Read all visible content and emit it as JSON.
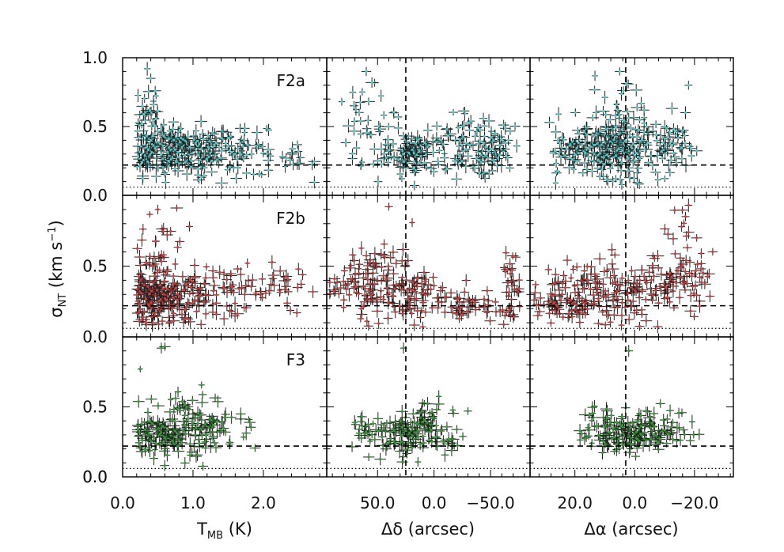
{
  "chart_data": {
    "type": "scatter",
    "y_axis": {
      "label": "σ",
      "label_sub": "NT",
      "label_unit": "(km s",
      "label_sup": "−1",
      "label_close": ")",
      "ylim": [
        0.0,
        1.0
      ],
      "ticks": [
        0.0,
        0.5,
        1.0
      ],
      "tick_labels_top": [
        "0.0",
        "0.5",
        "1.0"
      ],
      "tick_labels": [
        "0.0",
        "0.5"
      ],
      "hline_dashed": 0.22,
      "hline_dotted": 0.06
    },
    "columns": [
      {
        "label": "T",
        "label_sub": "MB",
        "label_rest": " (K)",
        "xlim": [
          0.0,
          2.9
        ],
        "ticks": [
          0.0,
          1.0,
          2.0
        ],
        "tick_labels": [
          "0.0",
          "1.0",
          "2.0"
        ],
        "vline_dashed": null
      },
      {
        "label": "Δδ (arcsec)",
        "xlim": [
          95,
          -85
        ],
        "ticks": [
          50,
          0,
          -50
        ],
        "tick_labels": [
          "50.0",
          "0.0",
          "−50.0"
        ],
        "vline_dashed": 25
      },
      {
        "label": "Δα (arcsec)",
        "xlim": [
          35,
          -33
        ],
        "ticks": [
          20,
          0,
          -20
        ],
        "tick_labels": [
          "20.0",
          "0.0",
          "−20.0"
        ],
        "vline_dashed": 3
      }
    ],
    "rows": [
      {
        "name": "F2a",
        "color": "#4ec9c9",
        "clusters": [
          [
            {
              "x": 0.75,
              "y": 0.33,
              "sx": 0.45,
              "sy": 0.09,
              "n": 260
            },
            {
              "x": 1.6,
              "y": 0.3,
              "sx": 0.5,
              "sy": 0.08,
              "n": 70
            },
            {
              "x": 0.35,
              "y": 0.6,
              "sx": 0.12,
              "sy": 0.15,
              "n": 30
            },
            {
              "x": 2.5,
              "y": 0.24,
              "sx": 0.2,
              "sy": 0.03,
              "n": 10
            }
          ],
          [
            {
              "x": 20,
              "y": 0.3,
              "sx": 14,
              "sy": 0.08,
              "n": 110
            },
            {
              "x": -25,
              "y": 0.37,
              "sx": 14,
              "sy": 0.13,
              "n": 70
            },
            {
              "x": -55,
              "y": 0.33,
              "sx": 10,
              "sy": 0.09,
              "n": 60
            },
            {
              "x": 55,
              "y": 0.5,
              "sx": 12,
              "sy": 0.18,
              "n": 40
            }
          ],
          [
            {
              "x": 8,
              "y": 0.34,
              "sx": 7,
              "sy": 0.1,
              "n": 220
            },
            {
              "x": -10,
              "y": 0.36,
              "sx": 6,
              "sy": 0.1,
              "n": 70
            },
            {
              "x": 22,
              "y": 0.3,
              "sx": 4,
              "sy": 0.1,
              "n": 40
            },
            {
              "x": 5,
              "y": 0.65,
              "sx": 5,
              "sy": 0.12,
              "n": 25
            }
          ]
        ]
      },
      {
        "name": "F2b",
        "color": "#d63a3a",
        "clusters": [
          [
            {
              "x": 0.55,
              "y": 0.27,
              "sx": 0.3,
              "sy": 0.09,
              "n": 220
            },
            {
              "x": 1.4,
              "y": 0.35,
              "sx": 0.55,
              "sy": 0.1,
              "n": 90
            },
            {
              "x": 0.5,
              "y": 0.65,
              "sx": 0.2,
              "sy": 0.15,
              "n": 30
            },
            {
              "x": 2.4,
              "y": 0.37,
              "sx": 0.3,
              "sy": 0.04,
              "n": 15
            }
          ],
          [
            {
              "x": 55,
              "y": 0.38,
              "sx": 18,
              "sy": 0.12,
              "n": 120
            },
            {
              "x": 15,
              "y": 0.3,
              "sx": 15,
              "sy": 0.1,
              "n": 80
            },
            {
              "x": -35,
              "y": 0.22,
              "sx": 18,
              "sy": 0.05,
              "n": 50
            },
            {
              "x": -68,
              "y": 0.3,
              "sx": 4,
              "sy": 0.15,
              "n": 35
            }
          ],
          [
            {
              "x": 12,
              "y": 0.32,
              "sx": 10,
              "sy": 0.12,
              "n": 160
            },
            {
              "x": -12,
              "y": 0.38,
              "sx": 7,
              "sy": 0.1,
              "n": 100
            },
            {
              "x": 25,
              "y": 0.22,
              "sx": 5,
              "sy": 0.05,
              "n": 40
            },
            {
              "x": -15,
              "y": 0.75,
              "sx": 4,
              "sy": 0.12,
              "n": 12
            }
          ]
        ]
      },
      {
        "name": "F3",
        "color": "#2f9e2f",
        "clusters": [
          [
            {
              "x": 0.7,
              "y": 0.3,
              "sx": 0.3,
              "sy": 0.08,
              "n": 160
            },
            {
              "x": 1.2,
              "y": 0.35,
              "sx": 0.35,
              "sy": 0.08,
              "n": 60
            },
            {
              "x": 0.9,
              "y": 0.52,
              "sx": 0.15,
              "sy": 0.05,
              "n": 15
            }
          ],
          [
            {
              "x": 30,
              "y": 0.3,
              "sx": 12,
              "sy": 0.07,
              "n": 80
            },
            {
              "x": 5,
              "y": 0.37,
              "sx": 9,
              "sy": 0.08,
              "n": 70
            },
            {
              "x": 60,
              "y": 0.35,
              "sx": 8,
              "sy": 0.06,
              "n": 25
            },
            {
              "x": -15,
              "y": 0.22,
              "sx": 5,
              "sy": 0.03,
              "n": 15
            }
          ],
          [
            {
              "x": 5,
              "y": 0.3,
              "sx": 6,
              "sy": 0.06,
              "n": 120
            },
            {
              "x": -8,
              "y": 0.35,
              "sx": 5,
              "sy": 0.07,
              "n": 70
            },
            {
              "x": 10,
              "y": 0.45,
              "sx": 3,
              "sy": 0.05,
              "n": 15
            }
          ]
        ]
      }
    ],
    "extra_points": {
      "F2a": [
        {
          "x": 0.35,
          "y": 0.92,
          "col": 0
        },
        {
          "x": 0.4,
          "y": 0.85,
          "col": 0
        },
        {
          "x": 60,
          "y": 0.9,
          "col": 1
        },
        {
          "x": 55,
          "y": 0.82,
          "col": 1
        },
        {
          "x": 5,
          "y": 0.9,
          "col": 2
        },
        {
          "x": -18,
          "y": 0.8,
          "col": 2
        }
      ],
      "F2b": [
        {
          "x": 0.5,
          "y": 0.9,
          "col": 0
        },
        {
          "x": 0.95,
          "y": 0.78,
          "col": 0
        },
        {
          "x": 40,
          "y": 0.92,
          "col": 1
        },
        {
          "x": -18,
          "y": 0.93,
          "col": 2
        },
        {
          "x": -17,
          "y": 0.85,
          "col": 2
        }
      ],
      "F3": [
        {
          "x": 0.25,
          "y": 0.77,
          "col": 0
        },
        {
          "x": 0.55,
          "y": 0.92,
          "col": 0
        },
        {
          "x": 0.6,
          "y": 0.93,
          "col": 0
        },
        {
          "x": 27,
          "y": 0.92,
          "col": 1
        },
        {
          "x": -30,
          "y": 0.47,
          "col": 1
        },
        {
          "x": 2,
          "y": 0.9,
          "col": 2
        }
      ]
    }
  }
}
